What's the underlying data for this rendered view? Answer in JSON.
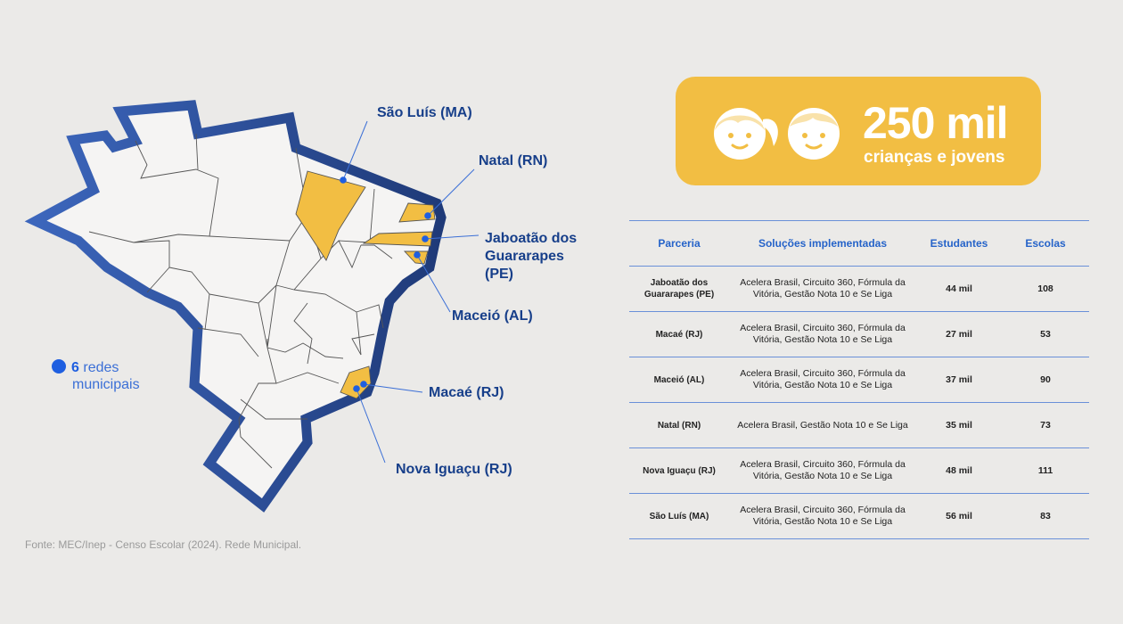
{
  "cities": [
    {
      "name": "São Luís (MA)"
    },
    {
      "name": "Natal (RN)"
    },
    {
      "name": "Jaboatão dos Guararapes (PE)",
      "lines": [
        "Jaboatão dos",
        "Guararapes",
        "(PE)"
      ]
    },
    {
      "name": "Maceió (AL)"
    },
    {
      "name": "Macaé (RJ)"
    },
    {
      "name": "Nova Iguaçu (RJ)"
    }
  ],
  "legend": {
    "count": "6",
    "text1": "redes",
    "text2": "municipais"
  },
  "source": "Fonte: MEC/Inep - Censo Escolar (2024). Rede Municipal.",
  "badge": {
    "value": "250 mil",
    "label": "crianças e jovens",
    "icon": "children-faces-icon"
  },
  "table": {
    "headers": [
      "Parceria",
      "Soluções implementadas",
      "Estudantes",
      "Escolas"
    ],
    "rows": [
      {
        "parceria": "Jaboatão dos Guararapes (PE)",
        "solucoes": "Acelera Brasil, Circuito 360, Fórmula da Vitória, Gestão Nota 10 e Se Liga",
        "estudantes": "44 mil",
        "escolas": "108"
      },
      {
        "parceria": "Macaé (RJ)",
        "solucoes": "Acelera Brasil, Circuito 360, Fórmula da Vitória, Gestão Nota 10 e Se Liga",
        "estudantes": "27 mil",
        "escolas": "53"
      },
      {
        "parceria": "Maceió (AL)",
        "solucoes": "Acelera Brasil, Circuito 360, Fórmula da Vitória, Gestão Nota 10 e Se Liga",
        "estudantes": "37 mil",
        "escolas": "90"
      },
      {
        "parceria": "Natal (RN)",
        "solucoes": "Acelera Brasil, Gestão Nota 10 e Se Liga",
        "estudantes": "35 mil",
        "escolas": "73"
      },
      {
        "parceria": "Nova Iguaçu (RJ)",
        "solucoes": "Acelera Brasil, Circuito 360, Fórmula da Vitória, Gestão Nota 10 e Se Liga",
        "estudantes": "48 mil",
        "escolas": "111"
      },
      {
        "parceria": "São Luís (MA)",
        "solucoes": "Acelera Brasil, Circuito 360, Fórmula da Vitória, Gestão Nota 10 e Se Liga",
        "estudantes": "56 mil",
        "escolas": "83"
      }
    ]
  },
  "colors": {
    "outline_light": "#3b63b5",
    "outline_dark": "#1f3d7a",
    "highlight": "#f2be43",
    "accent": "#173f8a"
  }
}
